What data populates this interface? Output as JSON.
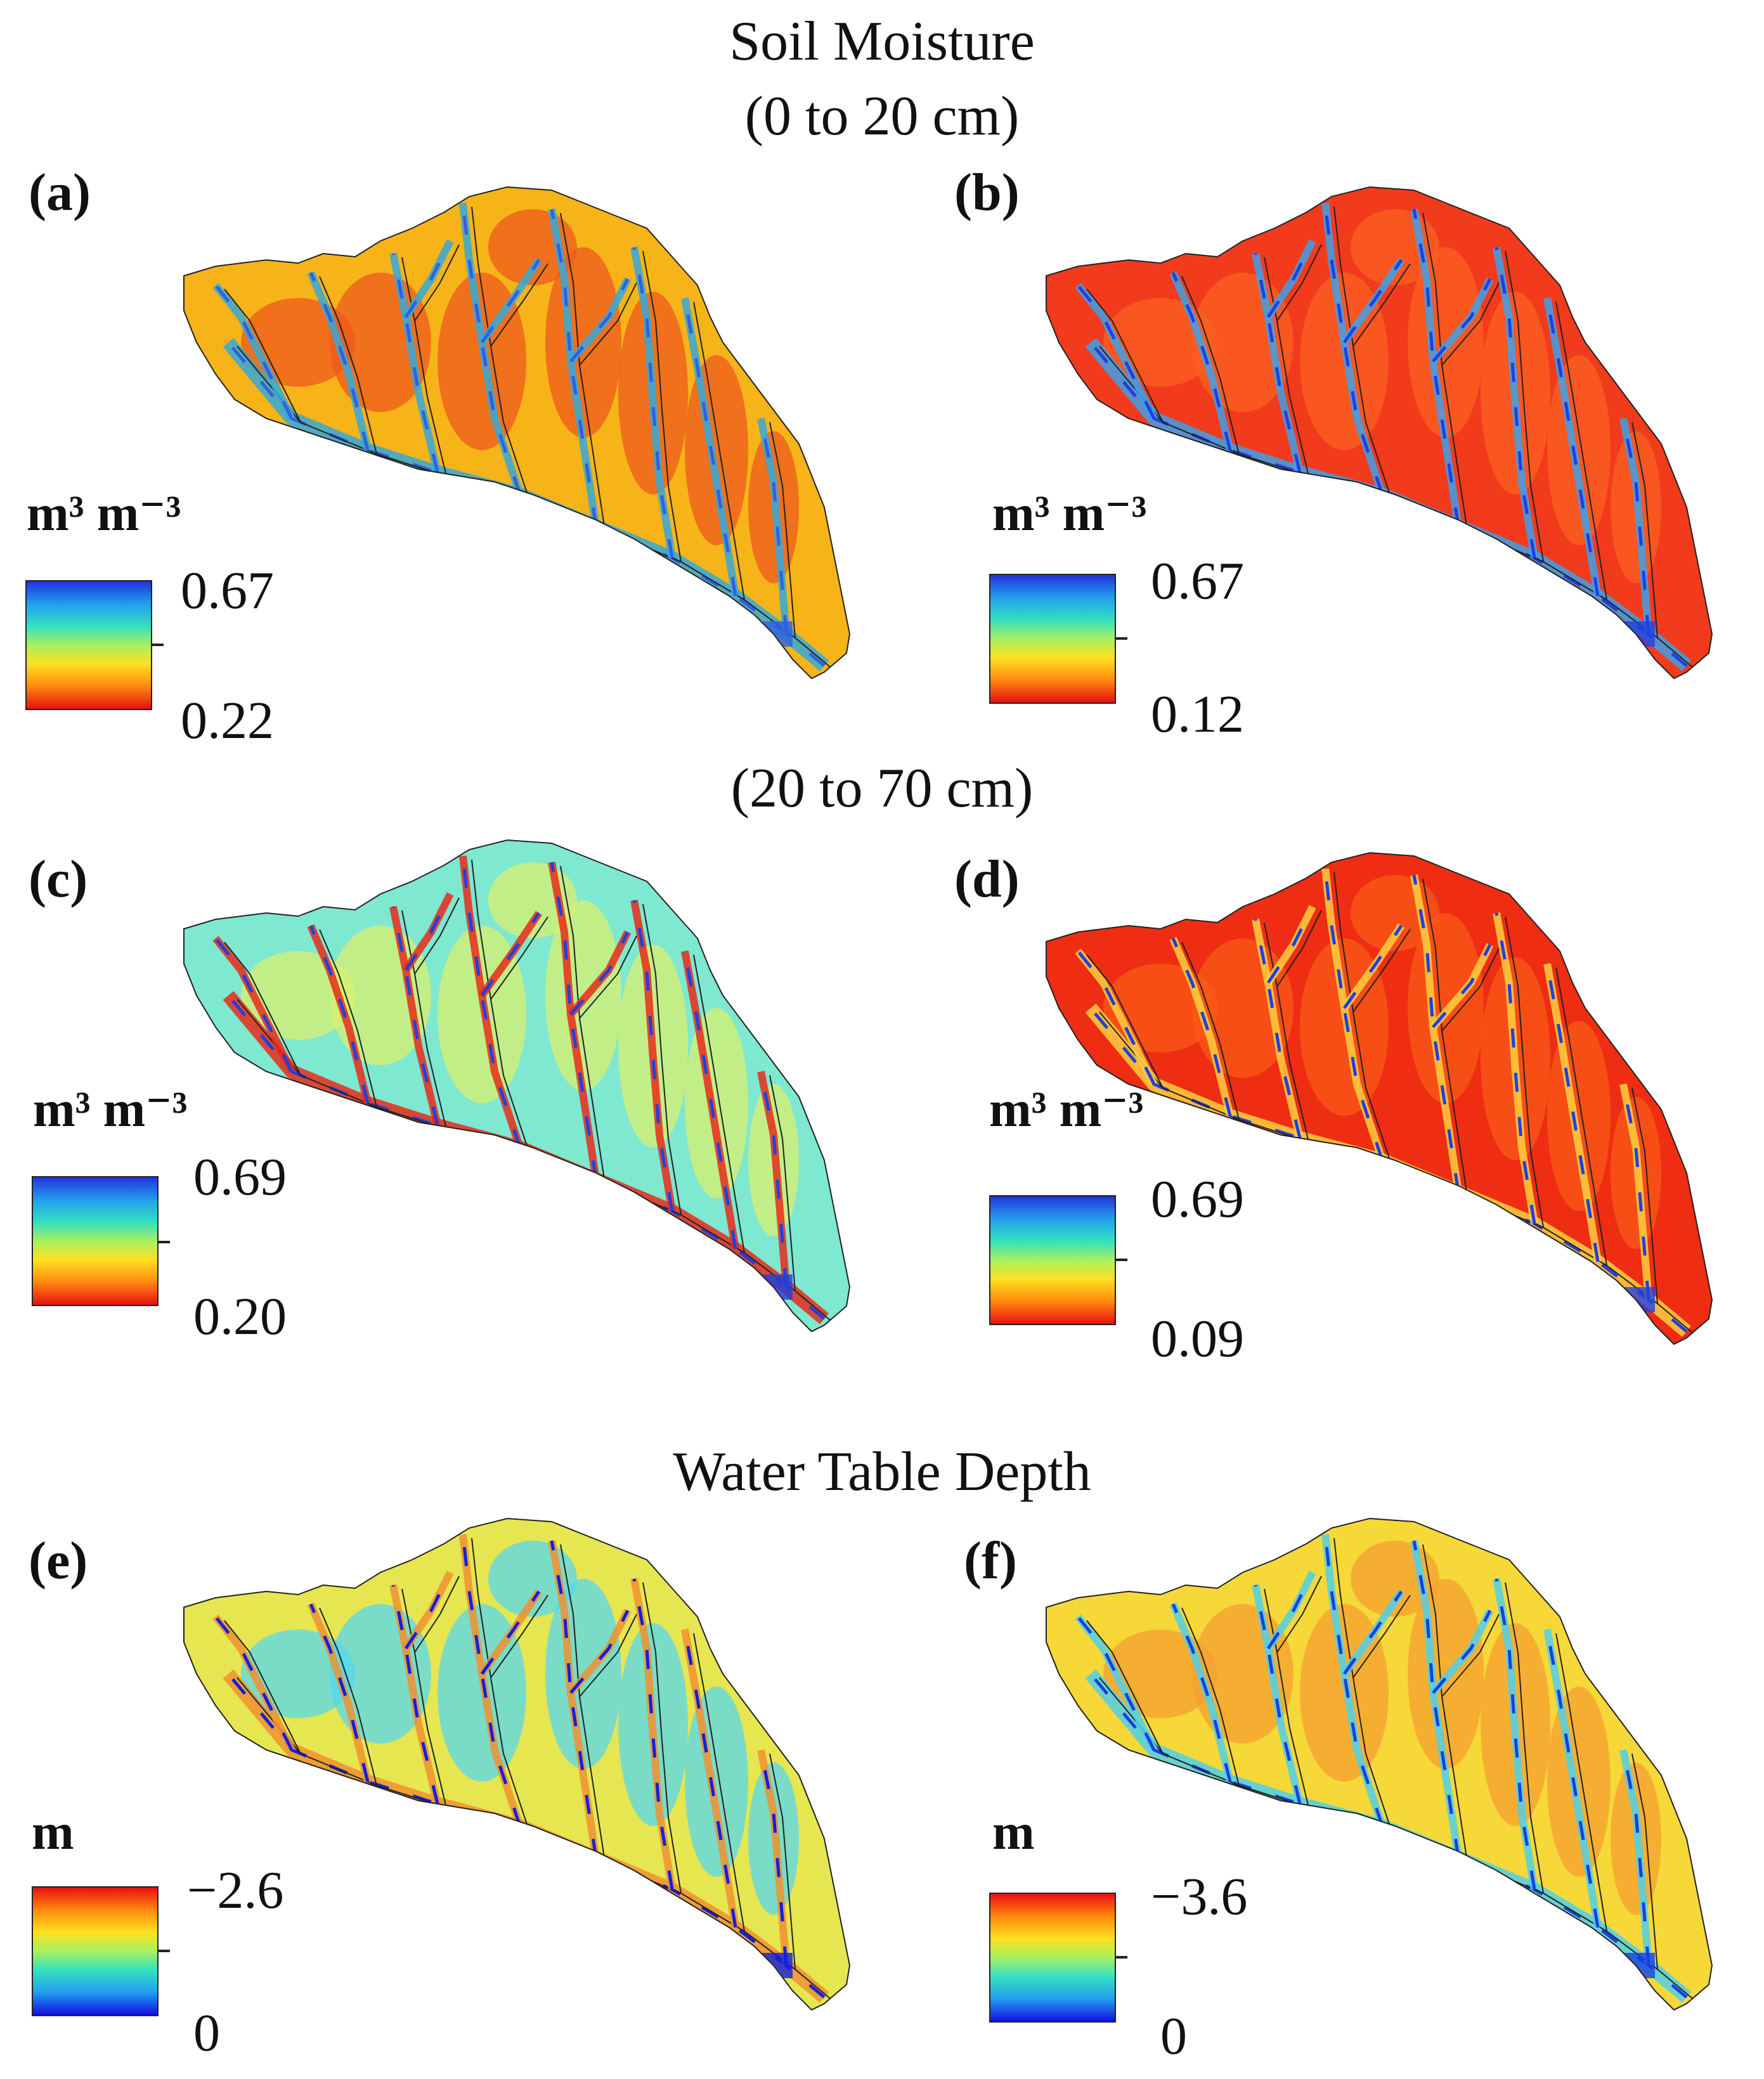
{
  "titles": {
    "soil_moisture": "Soil Moisture",
    "layer_top": "(0 to 20 cm)",
    "layer_deep": "(20 to 70 cm)",
    "water_table": "Water Table Depth"
  },
  "panels": [
    {
      "label": "(a)",
      "unit": "m³ m⁻³",
      "max": "0.67",
      "min": "0.22",
      "scale": "moisture",
      "base": "#f7b418",
      "alt": "#ee5a1c",
      "accent": "#3060e0",
      "stream": "#35a8d8"
    },
    {
      "label": "(b)",
      "unit": "m³ m⁻³",
      "max": "0.67",
      "min": "0.12",
      "scale": "moisture",
      "base": "#f23a1c",
      "alt": "#fb6022",
      "accent": "#2040e0",
      "stream": "#40a0e8"
    },
    {
      "label": "(c)",
      "unit": "m³ m⁻³",
      "max": "0.69",
      "min": "0.20",
      "scale": "moisture",
      "base": "#7fe8d0",
      "alt": "#d8f070",
      "accent": "#2040e0",
      "stream": "#e82a1a"
    },
    {
      "label": "(d)",
      "unit": "m³ m⁻³",
      "max": "0.69",
      "min": "0.09",
      "scale": "moisture",
      "base": "#ef2d12",
      "alt": "#fa5a18",
      "accent": "#2040e0",
      "stream": "#ffd040"
    },
    {
      "label": "(e)",
      "unit": "m",
      "max": "−2.6",
      "min": "0",
      "scale": "wtd",
      "base": "#e6e650",
      "alt": "#55d8ee",
      "accent": "#1020e0",
      "stream": "#f09030"
    },
    {
      "label": "(f)",
      "unit": "m",
      "max": "−3.6",
      "min": "0",
      "scale": "wtd",
      "base": "#f6d838",
      "alt": "#f6a030",
      "accent": "#1840e0",
      "stream": "#50d0e8"
    }
  ]
}
